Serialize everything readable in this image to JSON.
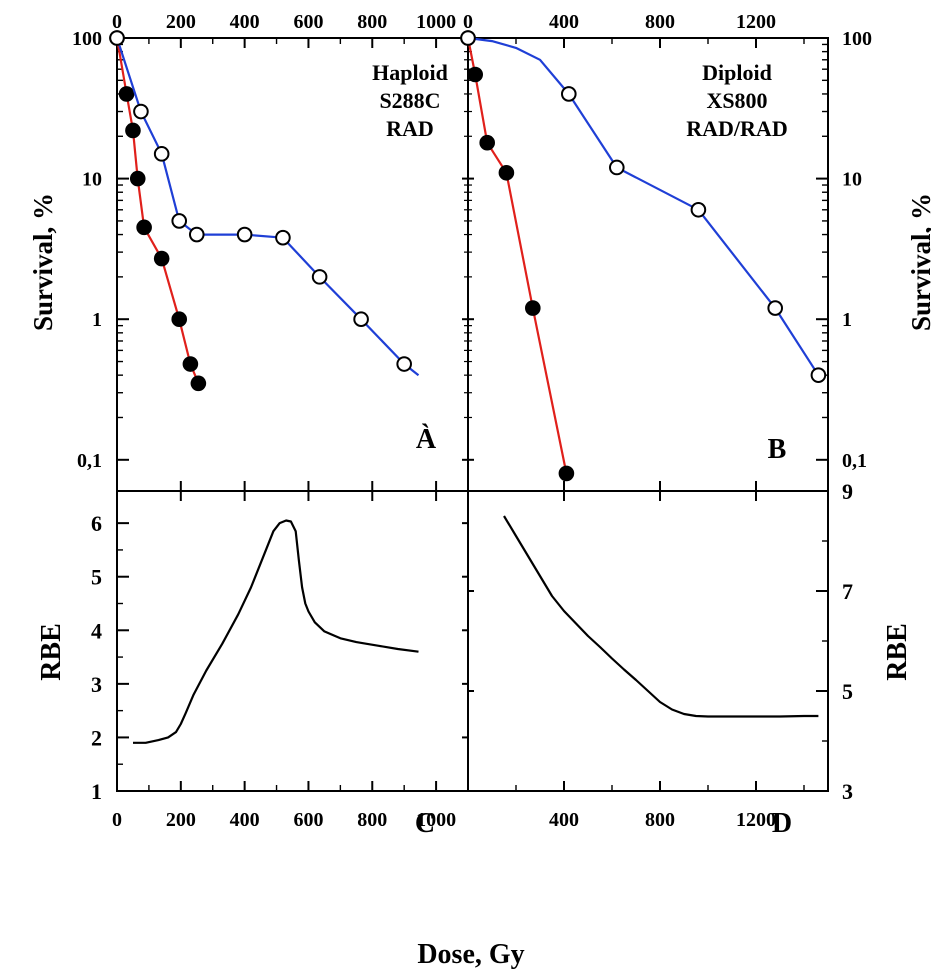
{
  "chart_data": [
    {
      "panel": "A",
      "type": "line",
      "annotation": [
        "Haploid",
        "S288C",
        "RAD"
      ],
      "ylabel": "Survival, %",
      "yscale": "log",
      "ylim": [
        0.06,
        100
      ],
      "xlim": [
        0,
        1100
      ],
      "x_ticks": [
        "0",
        "200",
        "400",
        "600",
        "800",
        "1000"
      ],
      "y_ticks": [
        "0,1",
        "1",
        "10",
        "100"
      ],
      "series": [
        {
          "color": "#e0201b",
          "marker": "filled-circle",
          "x": [
            0,
            30,
            50,
            65,
            85,
            140,
            195,
            230,
            255
          ],
          "y": [
            100,
            40,
            22,
            10,
            4.5,
            2.7,
            1.0,
            0.48,
            0.35
          ]
        },
        {
          "color": "#1f3fd6",
          "marker": "open-circle",
          "x": [
            0,
            75,
            140,
            195,
            250,
            400,
            520,
            635,
            765,
            900,
            945
          ],
          "y": [
            100,
            30,
            15,
            5.0,
            4.0,
            4.0,
            3.8,
            2.0,
            1.0,
            0.48,
            0.4
          ],
          "marked_points": [
            0,
            1,
            2,
            3,
            4,
            5,
            6,
            7,
            8,
            9
          ]
        }
      ]
    },
    {
      "panel": "B",
      "type": "line",
      "annotation": [
        "Diploid",
        "XS800",
        "RAD/RAD"
      ],
      "ylabel": "Survival, %",
      "yscale": "log",
      "ylim": [
        0.06,
        100
      ],
      "xlim": [
        0,
        1500
      ],
      "x_ticks": [
        "0",
        "400",
        "800",
        "1200"
      ],
      "y_ticks": [
        "0,1",
        "1",
        "10",
        "100"
      ],
      "series": [
        {
          "color": "#e0201b",
          "marker": "filled-circle",
          "x": [
            0,
            30,
            80,
            160,
            270,
            410
          ],
          "y": [
            100,
            55,
            18,
            11,
            1.2,
            0.08
          ]
        },
        {
          "color": "#1f3fd6",
          "marker": "open-circle",
          "x": [
            0,
            100,
            200,
            300,
            420,
            620,
            960,
            1280,
            1460
          ],
          "y": [
            100,
            95,
            85,
            70,
            40,
            12,
            6.0,
            1.2,
            0.4
          ],
          "marked_points": [
            0,
            4,
            5,
            6,
            7,
            8
          ]
        }
      ]
    },
    {
      "panel": "C",
      "type": "line",
      "ylabel": "RBE",
      "ylim": [
        1,
        6.6
      ],
      "xlim": [
        0,
        1100
      ],
      "x_ticks": [
        "0",
        "200",
        "400",
        "600",
        "800",
        "1000"
      ],
      "y_ticks": [
        "1",
        "2",
        "3",
        "4",
        "5",
        "6"
      ],
      "series": [
        {
          "color": "#000000",
          "x": [
            50,
            90,
            130,
            160,
            185,
            200,
            215,
            240,
            280,
            330,
            380,
            420,
            460,
            490,
            510,
            530,
            545,
            560,
            570,
            580,
            590,
            600,
            620,
            650,
            700,
            750,
            780,
            820,
            880,
            945
          ],
          "y": [
            1.9,
            1.9,
            1.95,
            2.0,
            2.1,
            2.25,
            2.45,
            2.8,
            3.25,
            3.75,
            4.3,
            4.8,
            5.4,
            5.85,
            6.0,
            6.05,
            6.03,
            5.85,
            5.3,
            4.8,
            4.5,
            4.35,
            4.15,
            3.98,
            3.85,
            3.78,
            3.75,
            3.71,
            3.65,
            3.6
          ]
        }
      ]
    },
    {
      "panel": "D",
      "type": "line",
      "ylabel": "RBE",
      "ylim": [
        3,
        9
      ],
      "xlim": [
        0,
        1500
      ],
      "x_ticks": [
        "400",
        "800",
        "1200"
      ],
      "y_ticks": [
        "3",
        "5",
        "7",
        "9"
      ],
      "series": [
        {
          "color": "#000000",
          "x": [
            150,
            200,
            250,
            300,
            350,
            400,
            450,
            500,
            550,
            600,
            650,
            700,
            750,
            800,
            850,
            900,
            950,
            1000,
            1100,
            1200,
            1300,
            1400,
            1460
          ],
          "y": [
            8.5,
            8.1,
            7.7,
            7.3,
            6.9,
            6.6,
            6.35,
            6.1,
            5.88,
            5.65,
            5.43,
            5.22,
            5.0,
            4.78,
            4.63,
            4.54,
            4.5,
            4.49,
            4.49,
            4.49,
            4.49,
            4.5,
            4.5
          ]
        }
      ]
    }
  ],
  "labels": {
    "panel_a": "À",
    "panel_b": "B",
    "panel_c": "C",
    "panel_d": "D",
    "xlabel": "Dose, Gy"
  }
}
